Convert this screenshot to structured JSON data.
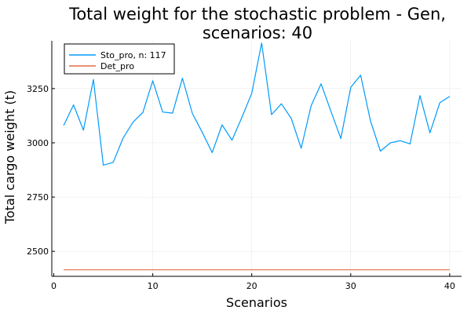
{
  "chart_data": {
    "type": "line",
    "title_lines": [
      "Total weight for the stochastic problem - Gen,",
      "scenarios: 40"
    ],
    "xlabel": "Scenarios",
    "ylabel": "Total cargo weight (t)",
    "xlim": [
      -0.2,
      41.2
    ],
    "ylim": [
      2385,
      2465
    ],
    "xticks": [
      0,
      10,
      20,
      30,
      40
    ],
    "yticks": [
      2500,
      2750,
      3000,
      3250
    ],
    "grid": true,
    "legend_position": "top-left",
    "series": [
      {
        "name": "Sto_pro, n: 117",
        "color": "#009AFA",
        "x": [
          1,
          2,
          3,
          4,
          5,
          6,
          7,
          8,
          9,
          10,
          11,
          12,
          13,
          14,
          15,
          16,
          17,
          18,
          19,
          20,
          21,
          22,
          23,
          24,
          25,
          26,
          27,
          28,
          29,
          30,
          31,
          32,
          33,
          34,
          35,
          36,
          37,
          38,
          39,
          40
        ],
        "y": [
          3080,
          3175,
          3058,
          3292,
          2897,
          2910,
          3022,
          3095,
          3140,
          3286,
          3142,
          3137,
          3298,
          3136,
          3048,
          2955,
          3083,
          3012,
          3117,
          3228,
          3460,
          3130,
          3180,
          3112,
          2975,
          3170,
          3272,
          3145,
          3020,
          3255,
          3312,
          3100,
          2962,
          3000,
          3010,
          2995,
          3218,
          3046,
          3185,
          3214
        ]
      },
      {
        "name": "Det_pro",
        "color": "#E26F46",
        "x": [
          1,
          40
        ],
        "y": [
          2415,
          2415
        ]
      }
    ]
  }
}
